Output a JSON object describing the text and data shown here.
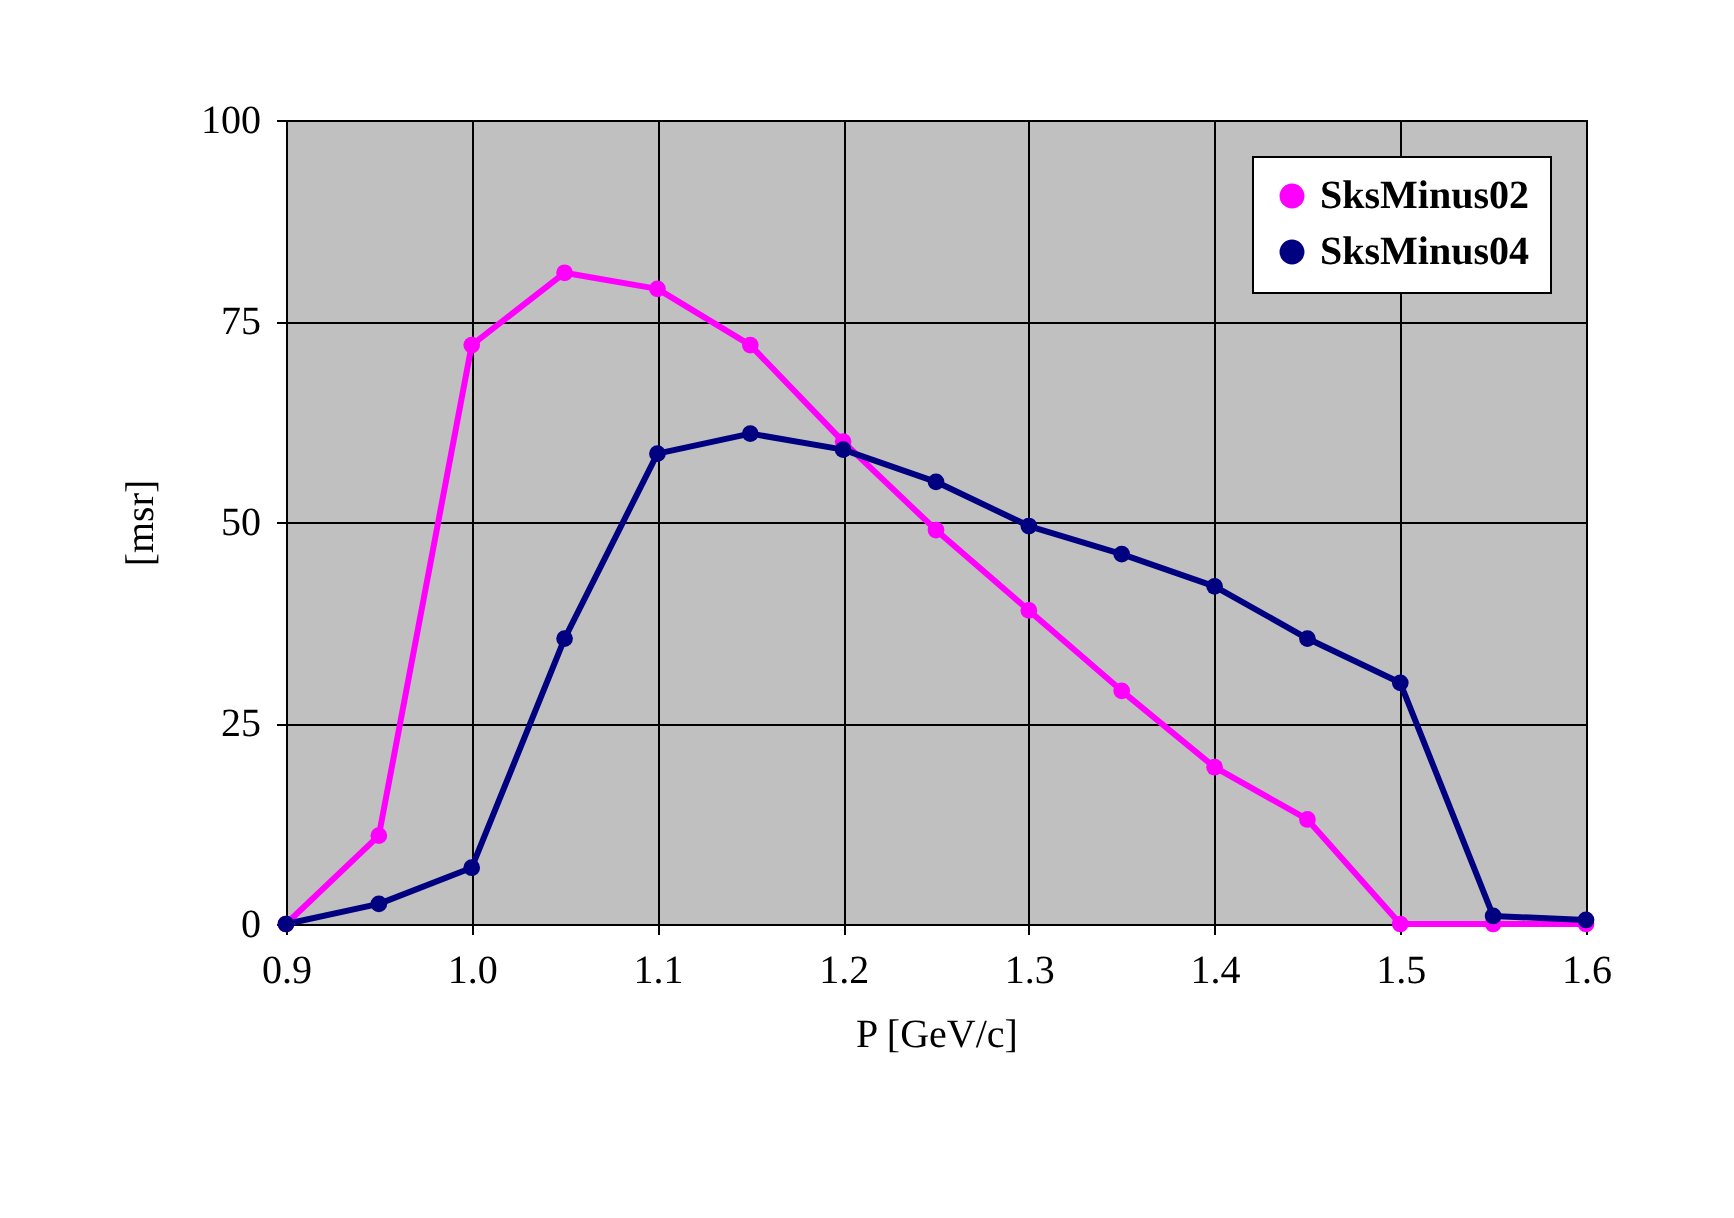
{
  "chart_data": {
    "type": "line",
    "xlabel": "P [GeV/c]",
    "ylabel": "[msr]",
    "x": [
      0.9,
      0.95,
      1.0,
      1.05,
      1.1,
      1.15,
      1.2,
      1.25,
      1.3,
      1.35,
      1.4,
      1.45,
      1.5,
      1.55,
      1.6
    ],
    "series": [
      {
        "name": "SksMinus02",
        "color": "#ff00ff",
        "values": [
          0,
          11,
          72,
          81,
          79,
          72,
          60,
          49,
          39,
          29,
          19.5,
          13,
          0,
          0,
          0
        ]
      },
      {
        "name": "SksMinus04",
        "color": "#000080",
        "values": [
          0,
          2.5,
          7,
          35.5,
          58.5,
          61,
          59,
          55,
          49.5,
          46,
          42,
          35.5,
          30,
          1,
          0.5
        ]
      }
    ],
    "xlim": [
      0.9,
      1.6
    ],
    "xticks": [
      {
        "value": 0.9,
        "label": "0.9"
      },
      {
        "value": 1.0,
        "label": "1.0"
      },
      {
        "value": 1.1,
        "label": "1.1"
      },
      {
        "value": 1.2,
        "label": "1.2"
      },
      {
        "value": 1.3,
        "label": "1.3"
      },
      {
        "value": 1.4,
        "label": "1.4"
      },
      {
        "value": 1.5,
        "label": "1.5"
      },
      {
        "value": 1.6,
        "label": "1.6"
      }
    ],
    "ylim": [
      0,
      100
    ],
    "yticks": [
      0,
      25,
      50,
      75,
      100
    ],
    "grid": true,
    "legend": "top right",
    "marker": "circle",
    "line_style": "solid"
  }
}
